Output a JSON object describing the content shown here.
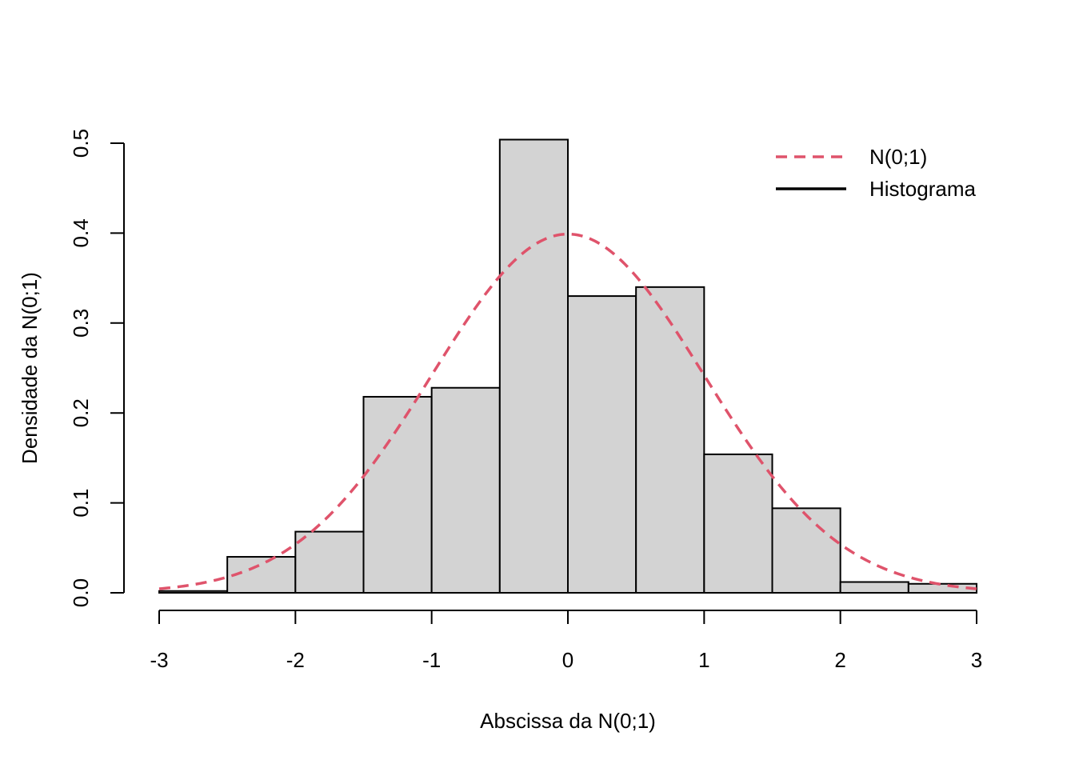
{
  "chart_data": {
    "type": "bar",
    "title": "",
    "xlabel": "Abscissa da N(0;1)",
    "ylabel": "Densidade da N(0;1)",
    "xlim": [
      -3,
      3
    ],
    "ylim": [
      0,
      0.5
    ],
    "x_ticks": [
      -3,
      -2,
      -1,
      0,
      1,
      2,
      3
    ],
    "x_tick_labels": [
      "-3",
      "-2",
      "-1",
      "0",
      "1",
      "2",
      "3"
    ],
    "y_ticks": [
      0.0,
      0.1,
      0.2,
      0.3,
      0.4,
      0.5
    ],
    "y_tick_labels": [
      "0.0",
      "0.1",
      "0.2",
      "0.3",
      "0.4",
      "0.5"
    ],
    "grid": false,
    "bins": [
      {
        "x0": -3.0,
        "x1": -2.5,
        "density": 0.002
      },
      {
        "x0": -2.5,
        "x1": -2.0,
        "density": 0.04
      },
      {
        "x0": -2.0,
        "x1": -1.5,
        "density": 0.068
      },
      {
        "x0": -1.5,
        "x1": -1.0,
        "density": 0.218
      },
      {
        "x0": -1.0,
        "x1": -0.5,
        "density": 0.228
      },
      {
        "x0": -0.5,
        "x1": 0.0,
        "density": 0.504
      },
      {
        "x0": 0.0,
        "x1": 0.5,
        "density": 0.33
      },
      {
        "x0": 0.5,
        "x1": 1.0,
        "density": 0.34
      },
      {
        "x0": 1.0,
        "x1": 1.5,
        "density": 0.154
      },
      {
        "x0": 1.5,
        "x1": 2.0,
        "density": 0.094
      },
      {
        "x0": 2.0,
        "x1": 2.5,
        "density": 0.012
      },
      {
        "x0": 2.5,
        "x1": 3.0,
        "density": 0.01
      }
    ],
    "curve": {
      "name": "N(0;1)",
      "mean": 0,
      "sd": 1,
      "style": "dashed"
    },
    "legend": {
      "placement": "top-right",
      "entries": [
        {
          "label": "N(0;1)",
          "style": "dashed",
          "color": "#DF536B"
        },
        {
          "label": "Histograma",
          "style": "solid",
          "color": "#000000"
        }
      ]
    },
    "colors": {
      "bar_fill": "#D3D3D3",
      "bar_stroke": "#000000",
      "curve": "#DF536B"
    }
  }
}
